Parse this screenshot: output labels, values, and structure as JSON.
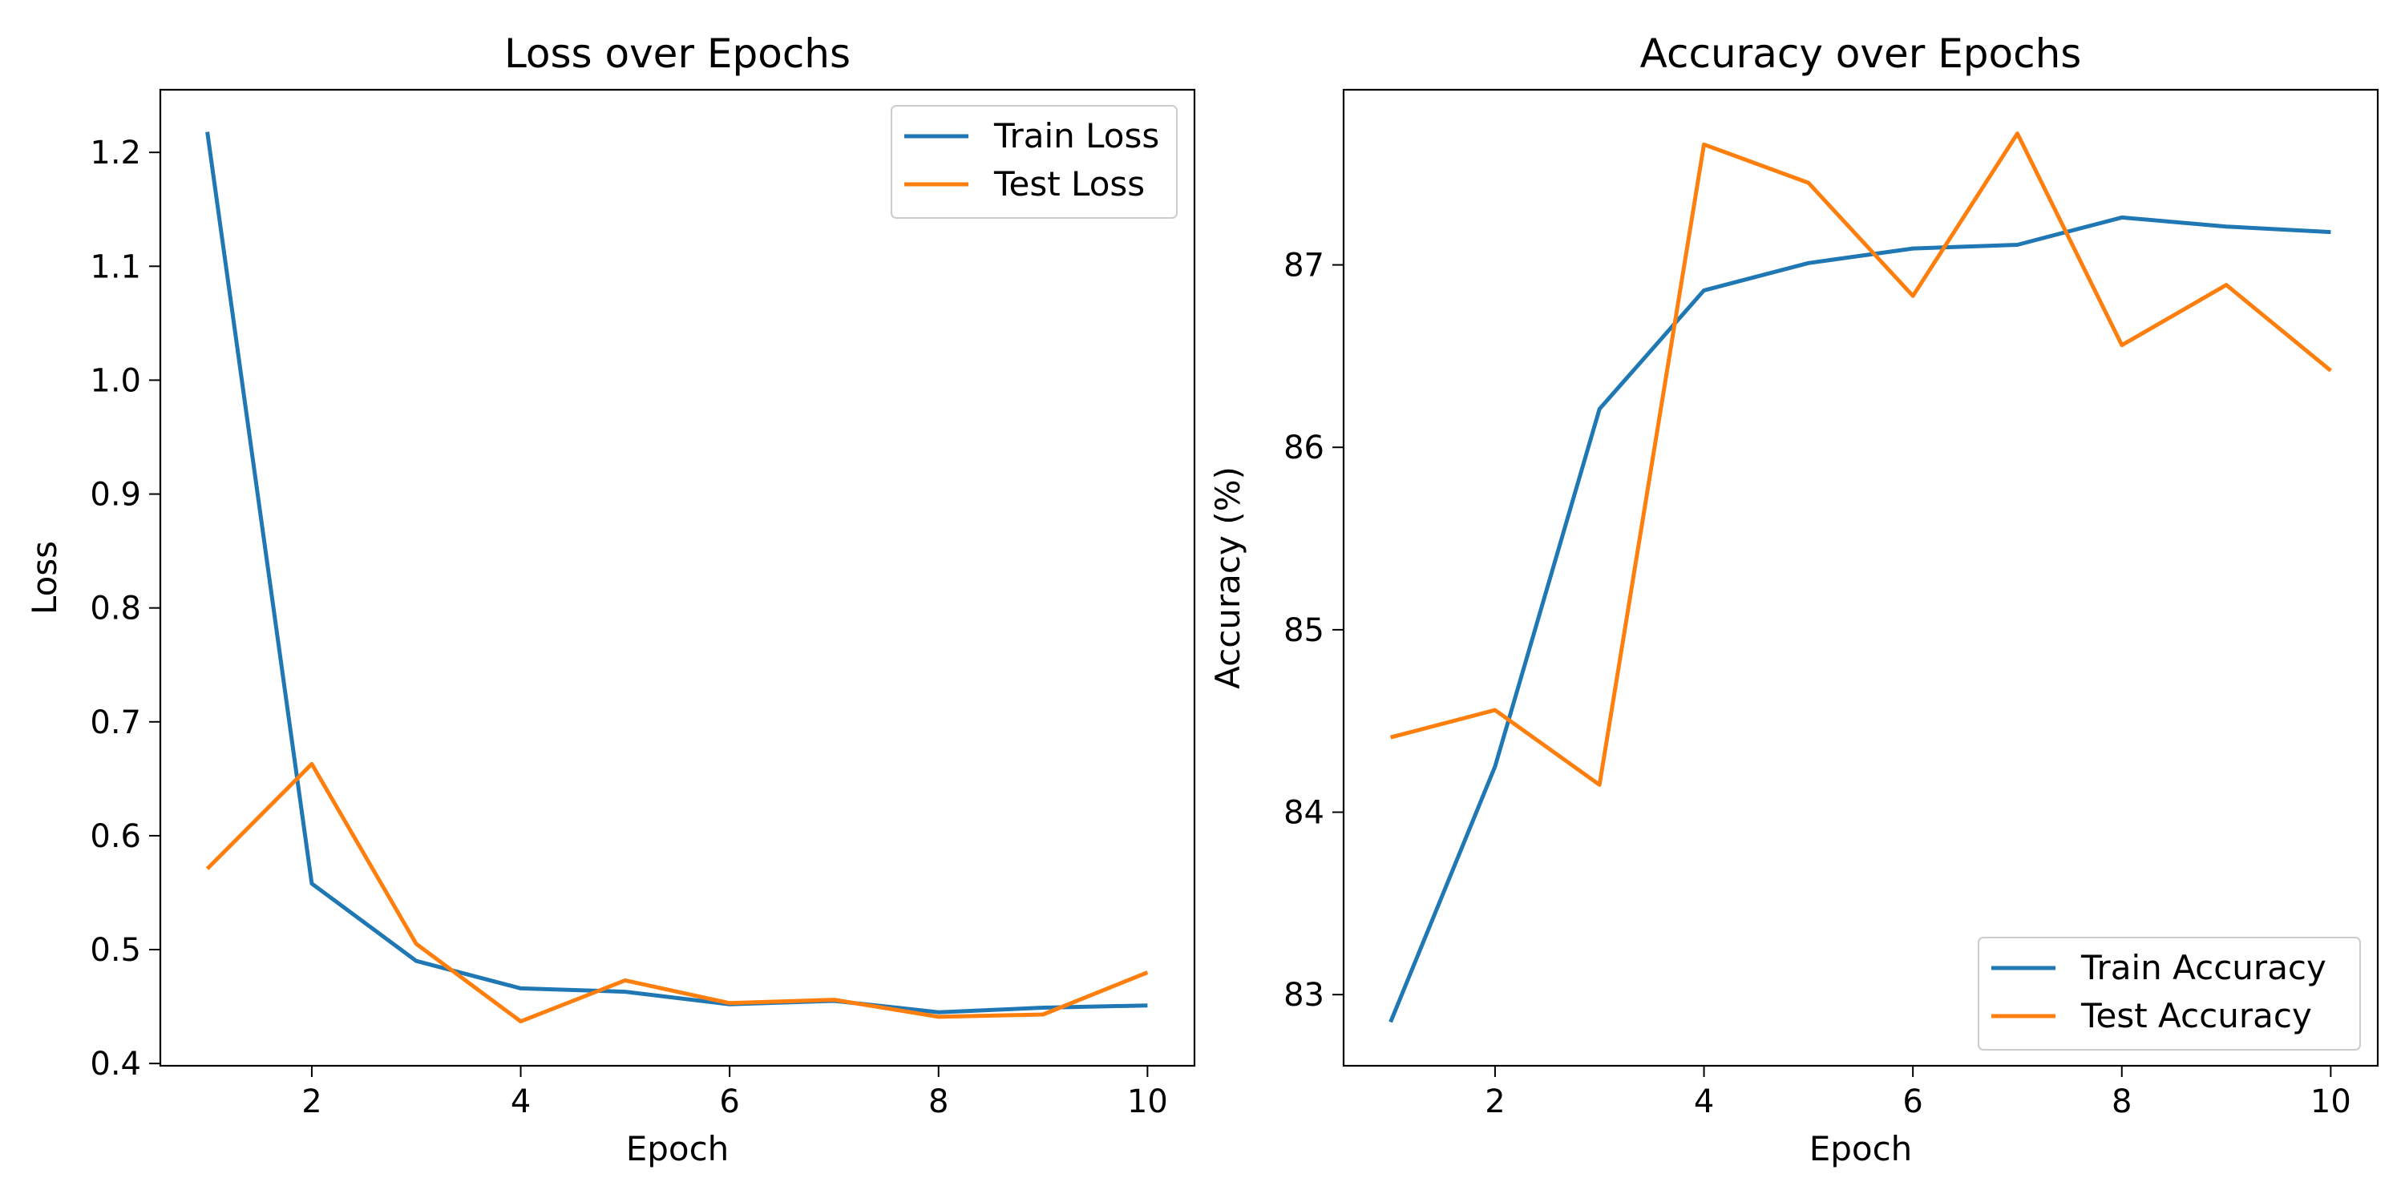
{
  "chart_data": [
    {
      "type": "line",
      "title": "Loss over Epochs",
      "xlabel": "Epoch",
      "ylabel": "Loss",
      "x": [
        1,
        2,
        3,
        4,
        5,
        6,
        7,
        8,
        9,
        10
      ],
      "xlim": [
        0.55,
        10.45
      ],
      "ylim": [
        0.398,
        1.255
      ],
      "xticks": [
        2,
        4,
        6,
        8,
        10
      ],
      "yticks": [
        0.4,
        0.5,
        0.6,
        0.7,
        0.8,
        0.9,
        1.0,
        1.1,
        1.2
      ],
      "ytick_labels": [
        "0.4",
        "0.5",
        "0.6",
        "0.7",
        "0.8",
        "0.9",
        "1.0",
        "1.1",
        "1.2"
      ],
      "grid": false,
      "legend_position": "top-right",
      "series": [
        {
          "name": "Train Loss",
          "color": "#1f77b4",
          "values": [
            1.218,
            0.558,
            0.49,
            0.466,
            0.463,
            0.452,
            0.455,
            0.445,
            0.449,
            0.451
          ]
        },
        {
          "name": "Test Loss",
          "color": "#ff7f0e",
          "values": [
            0.571,
            0.663,
            0.505,
            0.437,
            0.473,
            0.453,
            0.456,
            0.441,
            0.443,
            0.48
          ]
        }
      ]
    },
    {
      "type": "line",
      "title": "Accuracy over Epochs",
      "xlabel": "Epoch",
      "ylabel": "Accuracy (%)",
      "x": [
        1,
        2,
        3,
        4,
        5,
        6,
        7,
        8,
        9,
        10
      ],
      "xlim": [
        0.55,
        10.45
      ],
      "ylim": [
        82.61,
        87.96
      ],
      "xticks": [
        2,
        4,
        6,
        8,
        10
      ],
      "yticks": [
        83,
        84,
        85,
        86,
        87
      ],
      "ytick_labels": [
        "83",
        "84",
        "85",
        "86",
        "87"
      ],
      "grid": false,
      "legend_position": "bottom-right",
      "series": [
        {
          "name": "Train Accuracy",
          "color": "#1f77b4",
          "values": [
            82.85,
            84.25,
            86.21,
            86.86,
            87.01,
            87.09,
            87.11,
            87.26,
            87.21,
            87.18
          ]
        },
        {
          "name": "Test Accuracy",
          "color": "#ff7f0e",
          "values": [
            84.41,
            84.56,
            84.15,
            87.66,
            87.45,
            86.83,
            87.72,
            86.56,
            86.89,
            86.42
          ]
        }
      ]
    }
  ]
}
